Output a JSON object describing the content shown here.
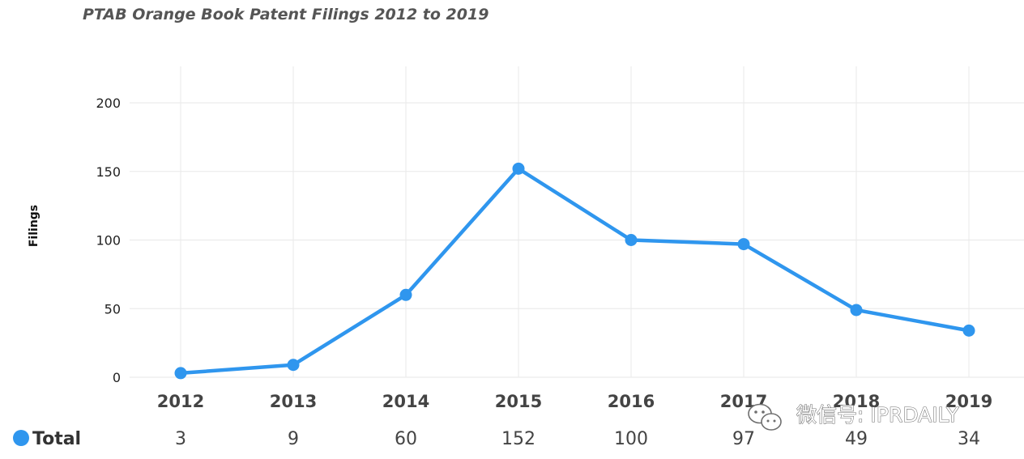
{
  "chart_data": {
    "type": "line",
    "title": "PTAB Orange Book Patent Filings 2012 to 2019",
    "xlabel": "",
    "ylabel": "Filings",
    "categories": [
      "2012",
      "2013",
      "2014",
      "2015",
      "2016",
      "2017",
      "2018",
      "2019"
    ],
    "series": [
      {
        "name": "Total",
        "values": [
          3,
          9,
          60,
          152,
          100,
          97,
          49,
          34
        ],
        "color": "#2f96ee"
      }
    ],
    "ylim": [
      0,
      200
    ],
    "yticks": [
      0,
      50,
      100,
      150,
      200
    ],
    "grid": true,
    "legend": "bottom-left, inline with data table row",
    "data_table_row": true
  },
  "watermark": {
    "text": "微信号: IPRDAILY",
    "icon": "wechat-icon"
  }
}
